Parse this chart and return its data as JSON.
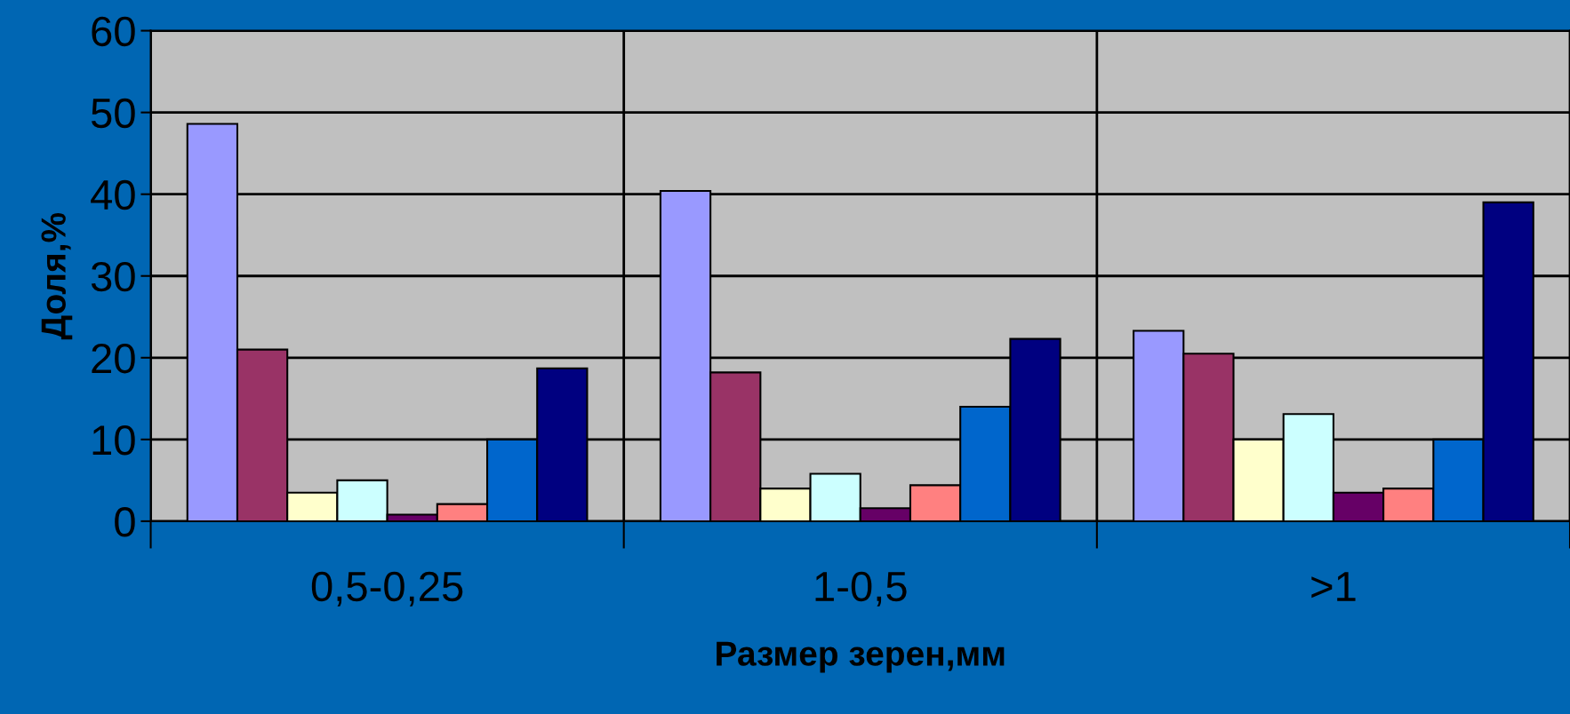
{
  "chart_data": {
    "type": "bar",
    "xlabel": "Размер зерен,мм",
    "ylabel": "Доля,%",
    "categories": [
      "0,5-0,25",
      "1-0,5",
      ">1"
    ],
    "series": [
      {
        "color": "#9999ff",
        "values": [
          48.6,
          40.4,
          23.3
        ]
      },
      {
        "color": "#993366",
        "values": [
          21,
          18.2,
          20.5
        ]
      },
      {
        "color": "#ffffcc",
        "values": [
          3.5,
          4,
          10
        ]
      },
      {
        "color": "#ccffff",
        "values": [
          5,
          5.8,
          13.1
        ]
      },
      {
        "color": "#660066",
        "values": [
          0.8,
          1.6,
          3.5
        ]
      },
      {
        "color": "#ff8080",
        "values": [
          2.1,
          4.4,
          4
        ]
      },
      {
        "color": "#0066cc",
        "values": [
          10,
          14,
          10
        ]
      },
      {
        "color": "#000080",
        "values": [
          18.7,
          22.3,
          39
        ]
      }
    ],
    "ylim": [
      0,
      60
    ],
    "yticks": [
      0,
      10,
      20,
      30,
      40,
      50,
      60
    ],
    "grid": true
  }
}
